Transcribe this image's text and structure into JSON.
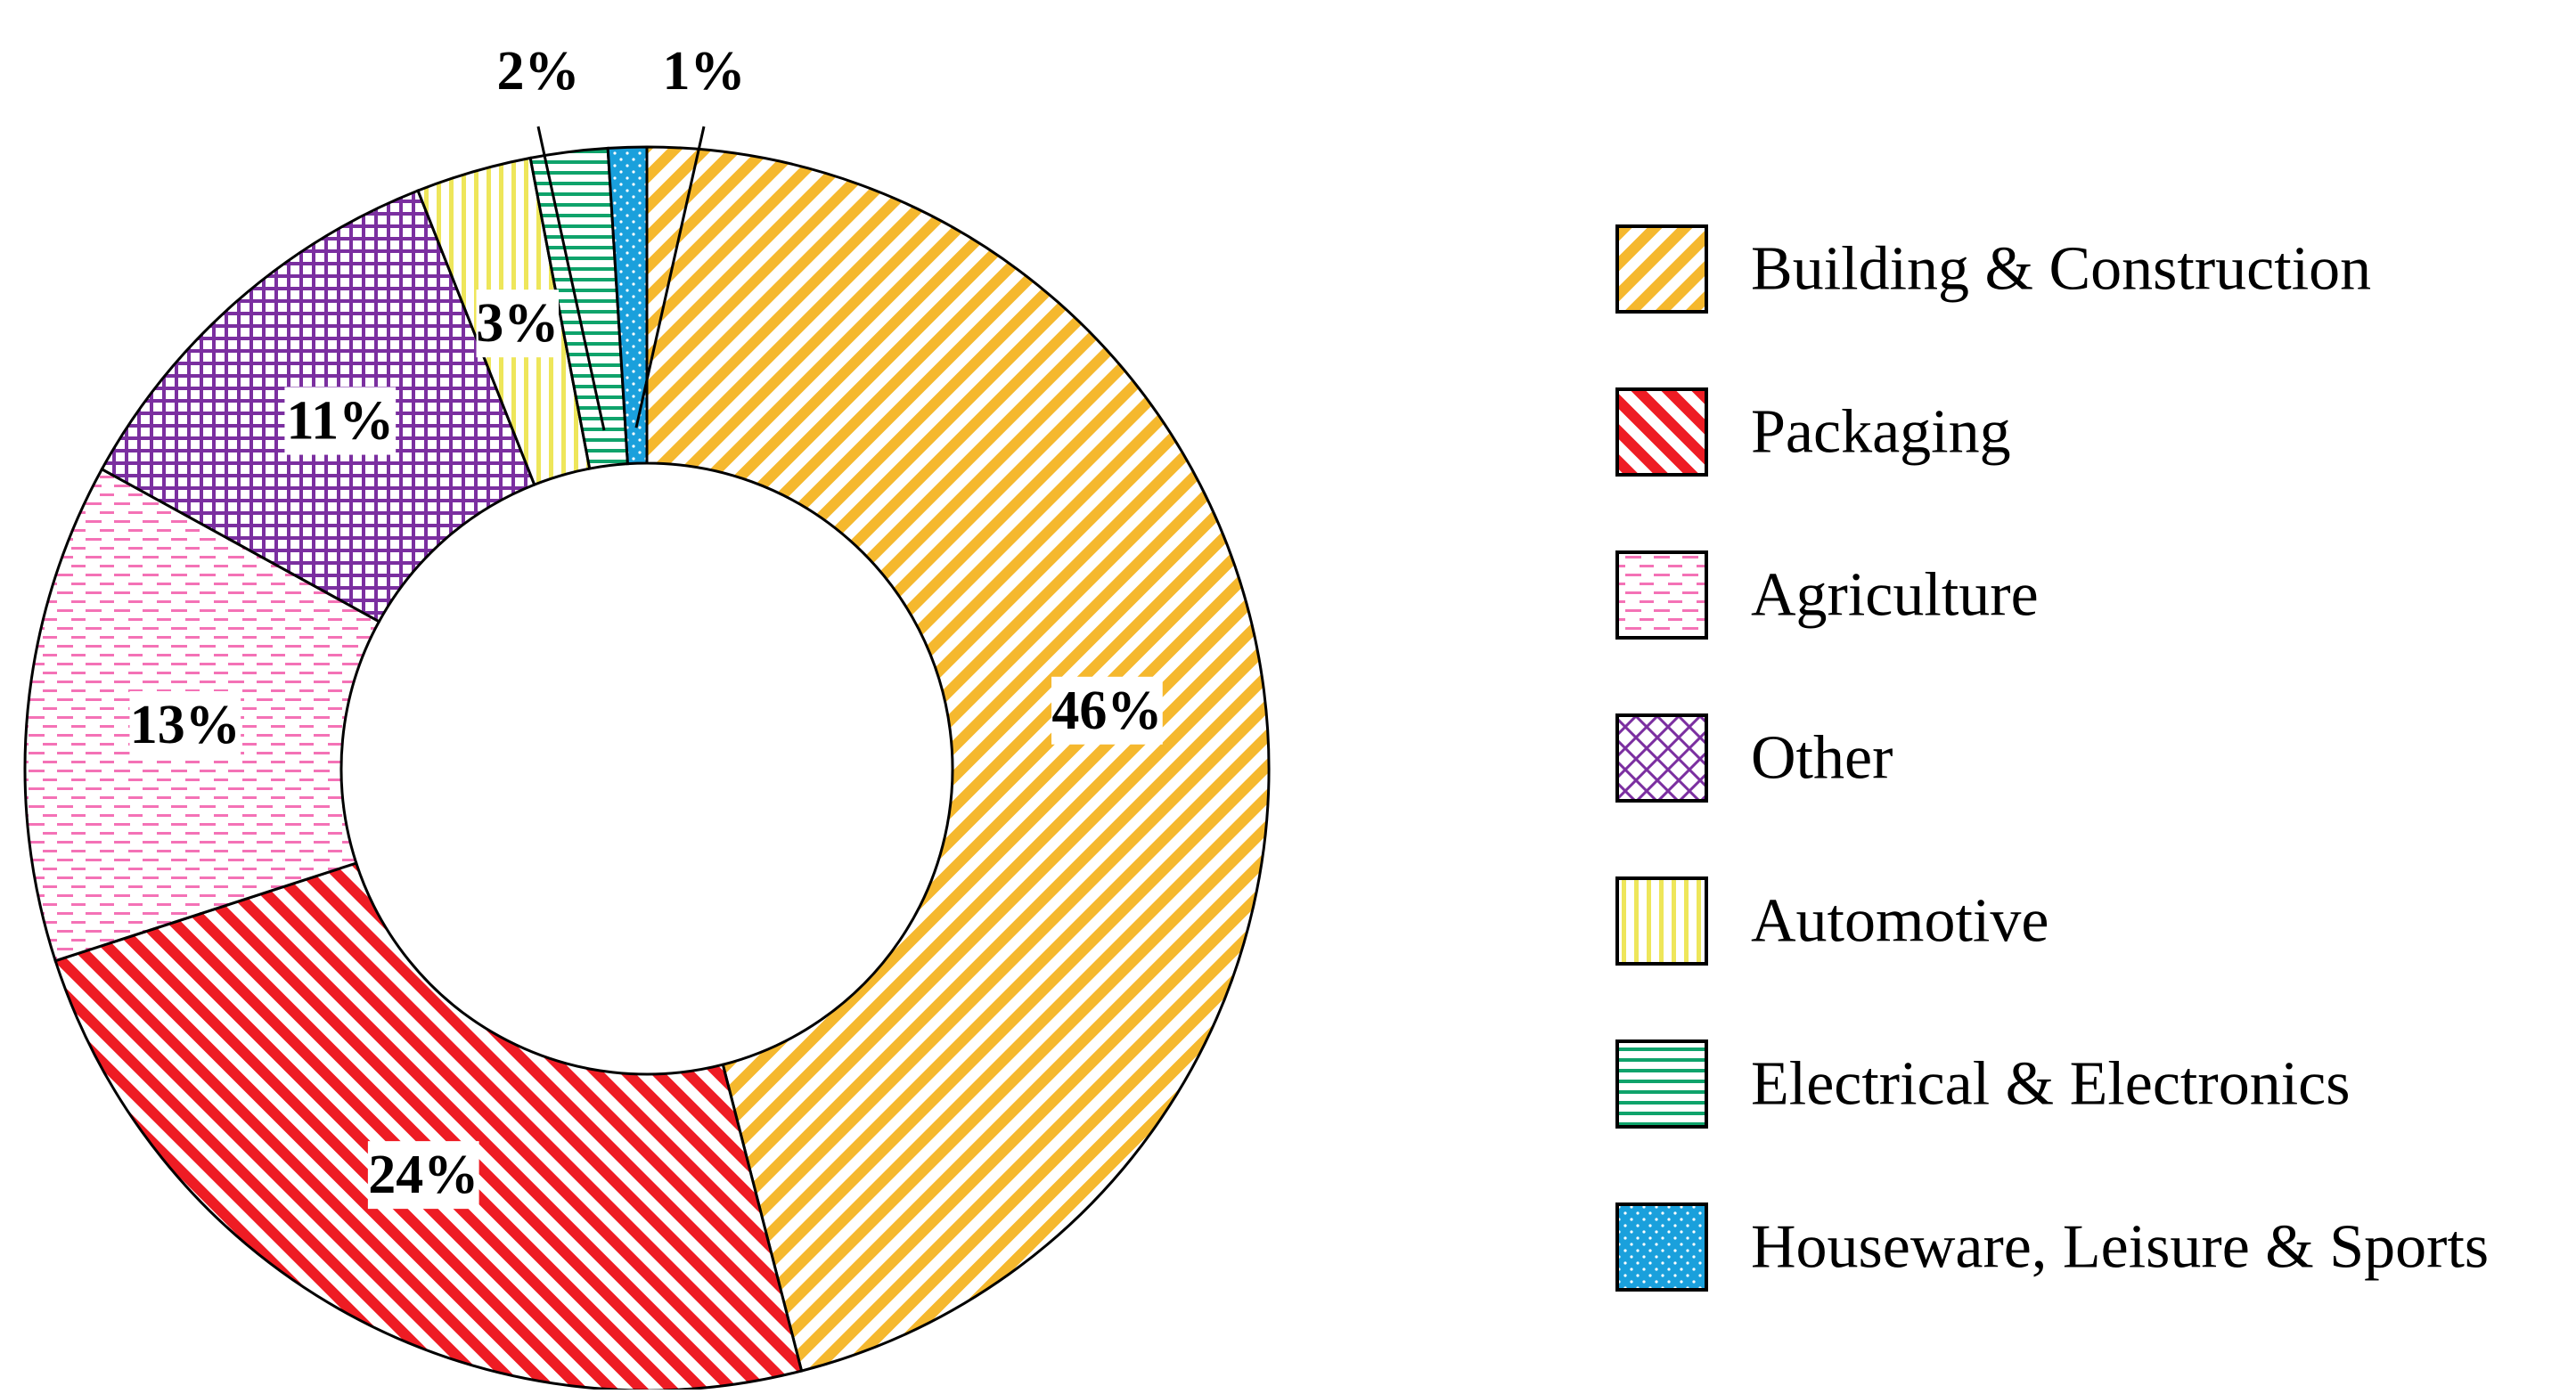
{
  "chart_data": {
    "type": "donut",
    "title": "",
    "start_angle_deg": 0,
    "direction": "clockwise",
    "categories": [
      "Building & Construction",
      "Packaging",
      "Agriculture",
      "Other",
      "Automotive",
      "Electrical & Electronics",
      "Houseware, Leisure & Sports"
    ],
    "values": [
      46,
      24,
      13,
      11,
      3,
      2,
      1
    ],
    "unit": "%",
    "data_labels": [
      "46%",
      "24%",
      "13%",
      "11%",
      "3%",
      "2%",
      "1%"
    ],
    "legend": {
      "placement": "right",
      "order": "category order"
    },
    "series_styles": [
      {
        "color": "#f5b82e",
        "pattern": "diagonal-up"
      },
      {
        "color": "#ee1c24",
        "pattern": "diagonal-down"
      },
      {
        "color": "#f472b6",
        "pattern": "dashed-horizontal"
      },
      {
        "color": "#7b2fa0",
        "pattern": "grid"
      },
      {
        "color": "#eee65a",
        "pattern": "vertical"
      },
      {
        "color": "#0fa36b",
        "pattern": "horizontal"
      },
      {
        "color": "#1aa0dc",
        "pattern": "dotted"
      }
    ],
    "legend_grid_style": {
      "color": "#7b2fa0",
      "pattern": "diagonal-cross"
    },
    "outline_color": "#000000",
    "label_box_color": "#ffffff"
  }
}
